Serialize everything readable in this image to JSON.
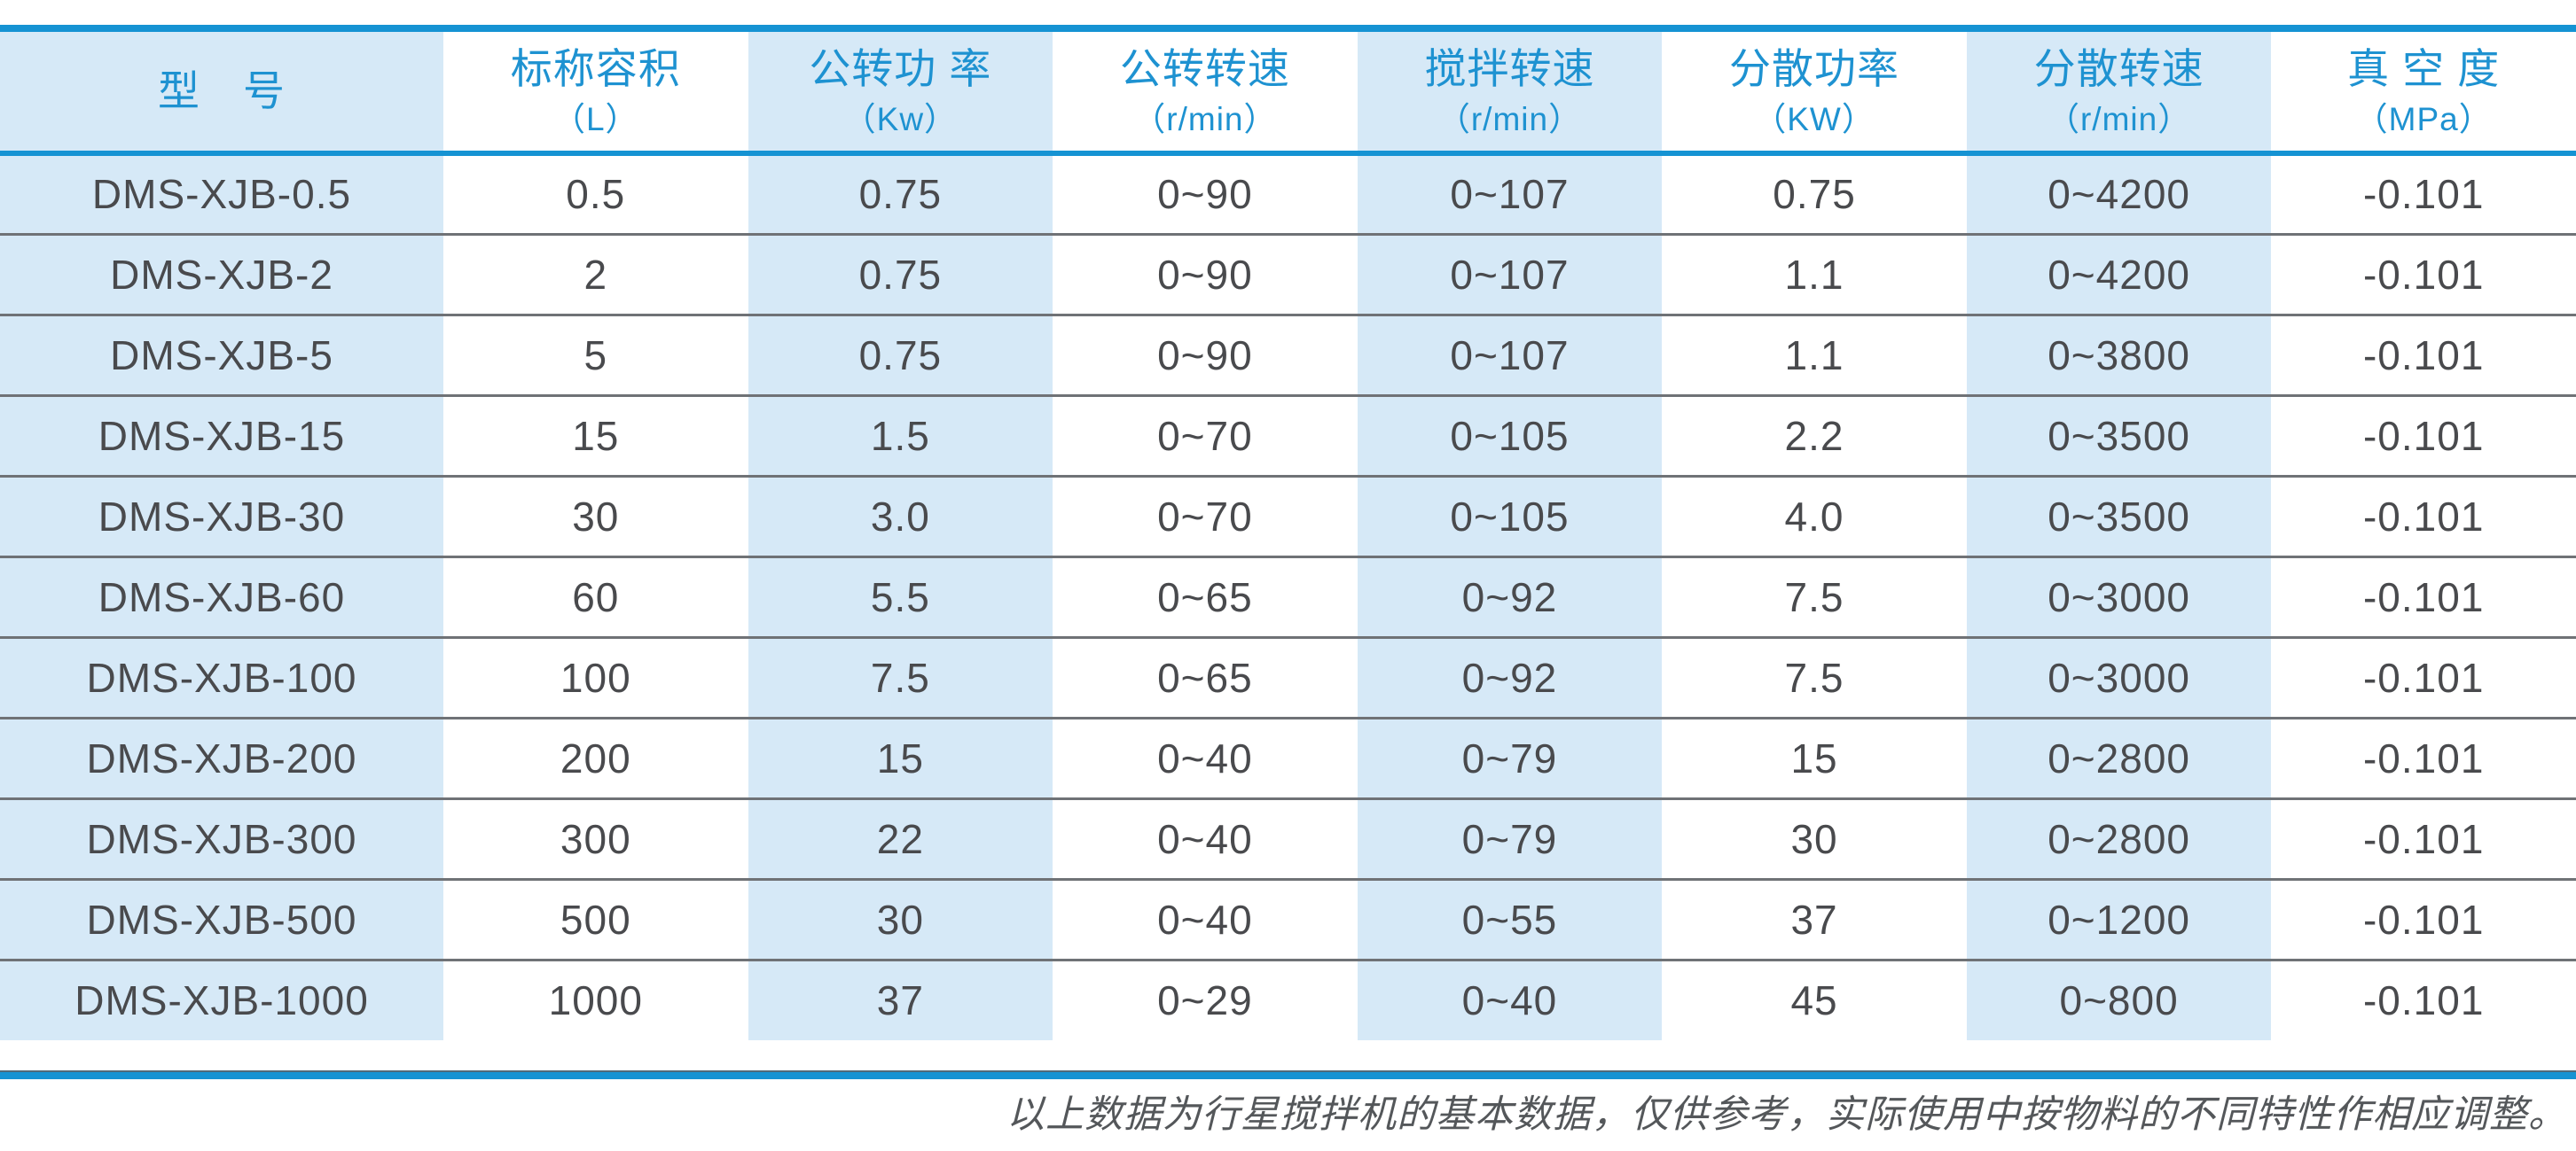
{
  "colors": {
    "accent": "#1593d3",
    "header_text": "#1e92d1",
    "column_fill": "#d6e9f7",
    "body_text": "#494a4d",
    "separator": "#6f7276",
    "footnote_text": "#54575a",
    "rule_dark_edge": "#4f6a7a",
    "page_bg": "#ffffff"
  },
  "table": {
    "columns": [
      {
        "key": "model",
        "name": "型　号",
        "unit": "",
        "tint": true
      },
      {
        "key": "capacity",
        "name": "标称容积",
        "unit": "（L）",
        "tint": false
      },
      {
        "key": "rev-power",
        "name": "公转功 率",
        "unit": "（Kw）",
        "tint": true
      },
      {
        "key": "rev-speed",
        "name": "公转转速",
        "unit": "（r/min）",
        "tint": false
      },
      {
        "key": "stir-speed",
        "name": "搅拌转速",
        "unit": "（r/min）",
        "tint": true
      },
      {
        "key": "disperse-power",
        "name": "分散功率",
        "unit": "（KW）",
        "tint": false
      },
      {
        "key": "disperse-speed",
        "name": "分散转速",
        "unit": "（r/min）",
        "tint": true
      },
      {
        "key": "vacuum",
        "name": "真 空 度",
        "unit": "（MPa）",
        "tint": false
      }
    ],
    "rows": [
      [
        "DMS-XJB-0.5",
        "0.5",
        "0.75",
        "0~90",
        "0~107",
        "0.75",
        "0~4200",
        "-0.101"
      ],
      [
        "DMS-XJB-2",
        "2",
        "0.75",
        "0~90",
        "0~107",
        "1.1",
        "0~4200",
        "-0.101"
      ],
      [
        "DMS-XJB-5",
        "5",
        "0.75",
        "0~90",
        "0~107",
        "1.1",
        "0~3800",
        "-0.101"
      ],
      [
        "DMS-XJB-15",
        "15",
        "1.5",
        "0~70",
        "0~105",
        "2.2",
        "0~3500",
        "-0.101"
      ],
      [
        "DMS-XJB-30",
        "30",
        "3.0",
        "0~70",
        "0~105",
        "4.0",
        "0~3500",
        "-0.101"
      ],
      [
        "DMS-XJB-60",
        "60",
        "5.5",
        "0~65",
        "0~92",
        "7.5",
        "0~3000",
        "-0.101"
      ],
      [
        "DMS-XJB-100",
        "100",
        "7.5",
        "0~65",
        "0~92",
        "7.5",
        "0~3000",
        "-0.101"
      ],
      [
        "DMS-XJB-200",
        "200",
        "15",
        "0~40",
        "0~79",
        "15",
        "0~2800",
        "-0.101"
      ],
      [
        "DMS-XJB-300",
        "300",
        "22",
        "0~40",
        "0~79",
        "30",
        "0~2800",
        "-0.101"
      ],
      [
        "DMS-XJB-500",
        "500",
        "30",
        "0~40",
        "0~55",
        "37",
        "0~1200",
        "-0.101"
      ],
      [
        "DMS-XJB-1000",
        "1000",
        "37",
        "0~29",
        "0~40",
        "45",
        "0~800",
        "-0.101"
      ]
    ]
  },
  "footer": {
    "note": "以上数据为行星搅拌机的基本数据，仅供参考，实际使用中按物料的不同特性作相应调整。"
  }
}
